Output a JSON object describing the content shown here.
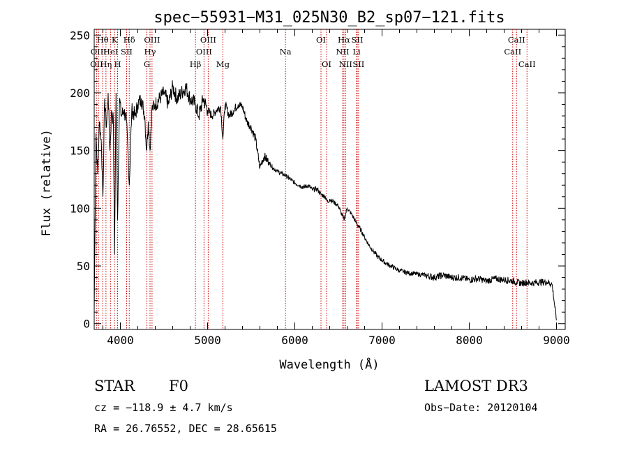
{
  "chart_data": {
    "type": "line",
    "title": "spec−55931−M31_025N30_B2_sp07−121.fits",
    "xlabel": "Wavelength (Å)",
    "ylabel": "Flux (relative)",
    "xlim": [
      3700,
      9100
    ],
    "ylim": [
      -5,
      255
    ],
    "xticks": [
      4000,
      5000,
      6000,
      7000,
      8000,
      9000
    ],
    "yticks": [
      0,
      50,
      100,
      150,
      200,
      250
    ],
    "line_color": "#000000",
    "marker_color": "#cc0000",
    "series": [
      {
        "name": "flux",
        "x": [
          3700,
          3720,
          3740,
          3760,
          3780,
          3800,
          3820,
          3840,
          3860,
          3880,
          3900,
          3920,
          3933,
          3950,
          3968,
          3990,
          4010,
          4040,
          4070,
          4102,
          4130,
          4170,
          4200,
          4240,
          4280,
          4300,
          4320,
          4340,
          4360,
          4400,
          4450,
          4500,
          4550,
          4600,
          4650,
          4700,
          4750,
          4800,
          4861,
          4900,
          4950,
          5000,
          5050,
          5100,
          5150,
          5175,
          5200,
          5250,
          5300,
          5350,
          5400,
          5450,
          5500,
          5550,
          5600,
          5620,
          5650,
          5700,
          5750,
          5800,
          5850,
          5900,
          5950,
          6000,
          6050,
          6100,
          6150,
          6200,
          6250,
          6300,
          6350,
          6380,
          6400,
          6450,
          6500,
          6563,
          6600,
          6650,
          6700,
          6750,
          6800,
          6850,
          6900,
          6950,
          7000,
          7050,
          7100,
          7150,
          7200,
          7250,
          7300,
          7400,
          7500,
          7600,
          7700,
          7800,
          7900,
          8000,
          8100,
          8200,
          8300,
          8400,
          8498,
          8542,
          8600,
          8662,
          8700,
          8800,
          8900,
          8950,
          9000
        ],
        "y": [
          10,
          165,
          130,
          175,
          160,
          110,
          195,
          170,
          200,
          150,
          185,
          175,
          60,
          200,
          90,
          195,
          180,
          185,
          175,
          120,
          185,
          180,
          190,
          195,
          180,
          150,
          175,
          150,
          185,
          190,
          195,
          200,
          190,
          205,
          195,
          200,
          205,
          195,
          190,
          180,
          195,
          185,
          180,
          185,
          188,
          160,
          190,
          180,
          185,
          190,
          188,
          175,
          170,
          160,
          135,
          140,
          145,
          140,
          135,
          132,
          130,
          128,
          125,
          122,
          120,
          118,
          120,
          116,
          117,
          112,
          110,
          105,
          108,
          105,
          102,
          90,
          100,
          95,
          88,
          82,
          75,
          68,
          63,
          58,
          55,
          52,
          50,
          48,
          46,
          45,
          44,
          43,
          42,
          40,
          42,
          40,
          40,
          38,
          39,
          37,
          39,
          38,
          37,
          36,
          35,
          36,
          35,
          36,
          36,
          34,
          3
        ]
      }
    ],
    "line_markers": [
      {
        "wavelength": 3727,
        "label": "OII",
        "row": 3
      },
      {
        "wavelength": 3750,
        "label": "OIII",
        "row": 2
      },
      {
        "wavelength": 3798,
        "label": "Hθ",
        "row": 1
      },
      {
        "wavelength": 3835,
        "label": "Hη",
        "row": 3
      },
      {
        "wavelength": 3889,
        "label": "HeI",
        "row": 2
      },
      {
        "wavelength": 3933,
        "label": "K",
        "row": 1
      },
      {
        "wavelength": 3968,
        "label": "H",
        "row": 3
      },
      {
        "wavelength": 4072,
        "label": "SII",
        "row": 2
      },
      {
        "wavelength": 4102,
        "label": "Hδ",
        "row": 1
      },
      {
        "wavelength": 4304,
        "label": "G",
        "row": 3
      },
      {
        "wavelength": 4340,
        "label": "Hγ",
        "row": 2
      },
      {
        "wavelength": 4363,
        "label": "OIII",
        "row": 1
      },
      {
        "wavelength": 4861,
        "label": "Hβ",
        "row": 3
      },
      {
        "wavelength": 4959,
        "label": "OIII",
        "row": 2
      },
      {
        "wavelength": 5007,
        "label": "OIII",
        "row": 1
      },
      {
        "wavelength": 5175,
        "label": "Mg",
        "row": 3
      },
      {
        "wavelength": 5893,
        "label": "Na",
        "row": 2
      },
      {
        "wavelength": 6300,
        "label": "OI",
        "row": 1
      },
      {
        "wavelength": 6364,
        "label": "OI",
        "row": 3
      },
      {
        "wavelength": 6548,
        "label": "NII",
        "row": 2
      },
      {
        "wavelength": 6563,
        "label": "Hα",
        "row": 1
      },
      {
        "wavelength": 6583,
        "label": "NII",
        "row": 3
      },
      {
        "wavelength": 6708,
        "label": "Li",
        "row": 2
      },
      {
        "wavelength": 6716,
        "label": "SII",
        "row": 1
      },
      {
        "wavelength": 6731,
        "label": "SII",
        "row": 3
      },
      {
        "wavelength": 8498,
        "label": "CaII",
        "row": 2
      },
      {
        "wavelength": 8542,
        "label": "CaII",
        "row": 1
      },
      {
        "wavelength": 8662,
        "label": "CaII",
        "row": 3
      }
    ]
  },
  "info": {
    "class_label": "STAR",
    "subclass": "F0",
    "survey": "LAMOST DR3",
    "cz": "cz = −118.9 ± 4.7 km/s",
    "obs_date": "Obs−Date: 20120104",
    "coords": "RA =  26.76552, DEC =  28.65615"
  }
}
